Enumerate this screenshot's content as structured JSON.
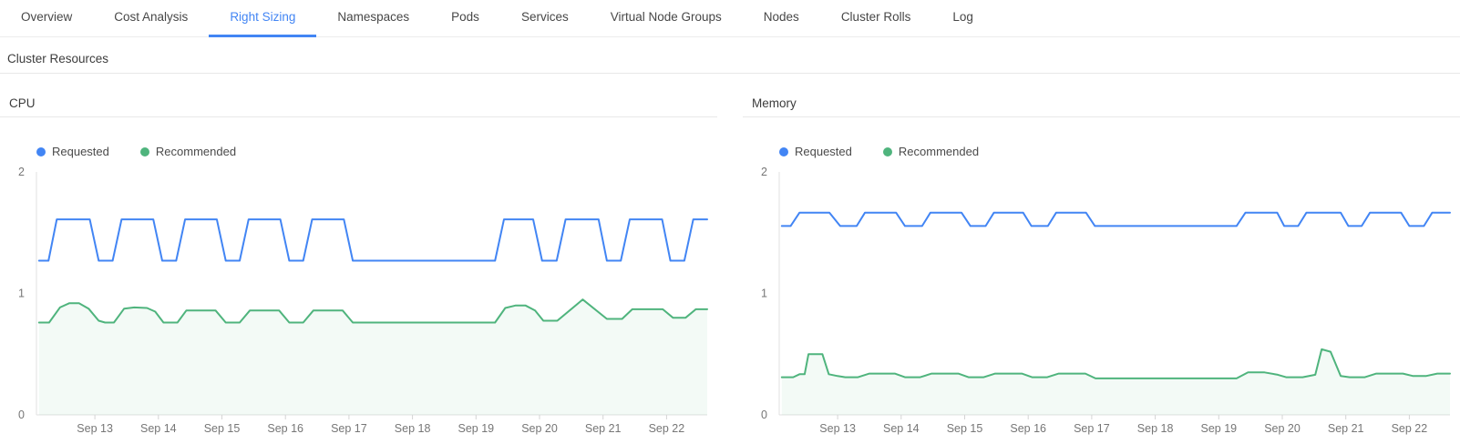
{
  "tabs": {
    "items": [
      {
        "label": "Overview",
        "active": false
      },
      {
        "label": "Cost Analysis",
        "active": false
      },
      {
        "label": "Right Sizing",
        "active": true
      },
      {
        "label": "Namespaces",
        "active": false
      },
      {
        "label": "Pods",
        "active": false
      },
      {
        "label": "Services",
        "active": false
      },
      {
        "label": "Virtual Node Groups",
        "active": false
      },
      {
        "label": "Nodes",
        "active": false
      },
      {
        "label": "Cluster Rolls",
        "active": false
      },
      {
        "label": "Log",
        "active": false
      }
    ]
  },
  "section": {
    "title": "Cluster Resources"
  },
  "colors": {
    "requested": "#4285f4",
    "recommended": "#4fb47d",
    "accent": "#4285f4",
    "axis": "#e0e0e0",
    "tick": "#d4d4d4",
    "fill_opacity": 0.07
  },
  "chart_data": [
    {
      "type": "line",
      "title": "CPU",
      "legend_position": "top-left",
      "grid": false,
      "xlim": [
        -0.92,
        9.64
      ],
      "ylim": [
        0,
        2
      ],
      "yticks": [
        0,
        1,
        2
      ],
      "xticks": [
        {
          "x": 0,
          "label": "Sep 13"
        },
        {
          "x": 1,
          "label": "Sep 14"
        },
        {
          "x": 2,
          "label": "Sep 15"
        },
        {
          "x": 3,
          "label": "Sep 16"
        },
        {
          "x": 4,
          "label": "Sep 17"
        },
        {
          "x": 5,
          "label": "Sep 18"
        },
        {
          "x": 6,
          "label": "Sep 19"
        },
        {
          "x": 7,
          "label": "Sep 20"
        },
        {
          "x": 8,
          "label": "Sep 21"
        },
        {
          "x": 9,
          "label": "Sep 22"
        }
      ],
      "series": [
        {
          "name": "Requested",
          "color_key": "requested",
          "fill": false,
          "points": [
            [
              -0.88,
              1.27
            ],
            [
              -0.73,
              1.27
            ],
            [
              -0.6,
              1.61
            ],
            [
              -0.08,
              1.61
            ],
            [
              0.06,
              1.27
            ],
            [
              0.28,
              1.27
            ],
            [
              0.42,
              1.61
            ],
            [
              0.92,
              1.61
            ],
            [
              1.06,
              1.27
            ],
            [
              1.28,
              1.27
            ],
            [
              1.42,
              1.61
            ],
            [
              1.92,
              1.61
            ],
            [
              2.06,
              1.27
            ],
            [
              2.28,
              1.27
            ],
            [
              2.42,
              1.61
            ],
            [
              2.92,
              1.61
            ],
            [
              3.06,
              1.27
            ],
            [
              3.28,
              1.27
            ],
            [
              3.42,
              1.61
            ],
            [
              3.92,
              1.61
            ],
            [
              4.06,
              1.27
            ],
            [
              6.3,
              1.27
            ],
            [
              6.44,
              1.61
            ],
            [
              6.9,
              1.61
            ],
            [
              7.04,
              1.27
            ],
            [
              7.27,
              1.27
            ],
            [
              7.41,
              1.61
            ],
            [
              7.93,
              1.61
            ],
            [
              8.06,
              1.27
            ],
            [
              8.28,
              1.27
            ],
            [
              8.42,
              1.61
            ],
            [
              8.93,
              1.61
            ],
            [
              9.06,
              1.27
            ],
            [
              9.28,
              1.27
            ],
            [
              9.42,
              1.61
            ],
            [
              9.64,
              1.61
            ]
          ]
        },
        {
          "name": "Recommended",
          "color_key": "recommended",
          "fill": true,
          "points": [
            [
              -0.88,
              0.76
            ],
            [
              -0.72,
              0.76
            ],
            [
              -0.55,
              0.885
            ],
            [
              -0.4,
              0.92
            ],
            [
              -0.25,
              0.92
            ],
            [
              -0.1,
              0.875
            ],
            [
              0.06,
              0.775
            ],
            [
              0.16,
              0.76
            ],
            [
              0.3,
              0.76
            ],
            [
              0.46,
              0.875
            ],
            [
              0.62,
              0.885
            ],
            [
              0.82,
              0.88
            ],
            [
              0.95,
              0.85
            ],
            [
              1.08,
              0.76
            ],
            [
              1.3,
              0.76
            ],
            [
              1.44,
              0.86
            ],
            [
              1.9,
              0.86
            ],
            [
              2.06,
              0.76
            ],
            [
              2.28,
              0.76
            ],
            [
              2.44,
              0.86
            ],
            [
              2.9,
              0.86
            ],
            [
              3.06,
              0.76
            ],
            [
              3.28,
              0.76
            ],
            [
              3.44,
              0.86
            ],
            [
              3.9,
              0.86
            ],
            [
              4.06,
              0.76
            ],
            [
              6.3,
              0.76
            ],
            [
              6.46,
              0.88
            ],
            [
              6.62,
              0.9
            ],
            [
              6.78,
              0.9
            ],
            [
              6.93,
              0.86
            ],
            [
              7.06,
              0.775
            ],
            [
              7.28,
              0.775
            ],
            [
              7.68,
              0.95
            ],
            [
              8.06,
              0.79
            ],
            [
              8.3,
              0.79
            ],
            [
              8.46,
              0.87
            ],
            [
              8.94,
              0.87
            ],
            [
              9.1,
              0.8
            ],
            [
              9.3,
              0.8
            ],
            [
              9.46,
              0.87
            ],
            [
              9.64,
              0.87
            ]
          ]
        }
      ]
    },
    {
      "type": "line",
      "title": "Memory",
      "legend_position": "top-left",
      "grid": false,
      "xlim": [
        -0.92,
        9.64
      ],
      "ylim": [
        0,
        2
      ],
      "yticks": [
        0,
        1,
        2
      ],
      "xticks": [
        {
          "x": 0,
          "label": "Sep 13"
        },
        {
          "x": 1,
          "label": "Sep 14"
        },
        {
          "x": 2,
          "label": "Sep 15"
        },
        {
          "x": 3,
          "label": "Sep 16"
        },
        {
          "x": 4,
          "label": "Sep 17"
        },
        {
          "x": 5,
          "label": "Sep 18"
        },
        {
          "x": 6,
          "label": "Sep 19"
        },
        {
          "x": 7,
          "label": "Sep 20"
        },
        {
          "x": 8,
          "label": "Sep 21"
        },
        {
          "x": 9,
          "label": "Sep 22"
        }
      ],
      "series": [
        {
          "name": "Requested",
          "color_key": "requested",
          "fill": false,
          "points": [
            [
              -0.88,
              1.555
            ],
            [
              -0.74,
              1.555
            ],
            [
              -0.6,
              1.665
            ],
            [
              -0.13,
              1.665
            ],
            [
              0.04,
              1.555
            ],
            [
              0.3,
              1.555
            ],
            [
              0.43,
              1.665
            ],
            [
              0.92,
              1.665
            ],
            [
              1.06,
              1.555
            ],
            [
              1.33,
              1.555
            ],
            [
              1.46,
              1.665
            ],
            [
              1.95,
              1.665
            ],
            [
              2.09,
              1.555
            ],
            [
              2.33,
              1.555
            ],
            [
              2.46,
              1.665
            ],
            [
              2.92,
              1.665
            ],
            [
              3.05,
              1.555
            ],
            [
              3.31,
              1.555
            ],
            [
              3.44,
              1.665
            ],
            [
              3.91,
              1.665
            ],
            [
              4.05,
              1.555
            ],
            [
              6.28,
              1.555
            ],
            [
              6.42,
              1.665
            ],
            [
              6.92,
              1.665
            ],
            [
              7.03,
              1.555
            ],
            [
              7.25,
              1.555
            ],
            [
              7.38,
              1.665
            ],
            [
              7.92,
              1.665
            ],
            [
              8.04,
              1.555
            ],
            [
              8.25,
              1.555
            ],
            [
              8.38,
              1.665
            ],
            [
              8.87,
              1.665
            ],
            [
              9.0,
              1.555
            ],
            [
              9.23,
              1.555
            ],
            [
              9.36,
              1.665
            ],
            [
              9.64,
              1.665
            ]
          ]
        },
        {
          "name": "Recommended",
          "color_key": "recommended",
          "fill": true,
          "points": [
            [
              -0.88,
              0.31
            ],
            [
              -0.7,
              0.31
            ],
            [
              -0.6,
              0.335
            ],
            [
              -0.52,
              0.335
            ],
            [
              -0.46,
              0.5
            ],
            [
              -0.24,
              0.5
            ],
            [
              -0.14,
              0.335
            ],
            [
              0.0,
              0.32
            ],
            [
              0.12,
              0.31
            ],
            [
              0.32,
              0.31
            ],
            [
              0.5,
              0.34
            ],
            [
              0.9,
              0.34
            ],
            [
              1.06,
              0.31
            ],
            [
              1.3,
              0.31
            ],
            [
              1.48,
              0.34
            ],
            [
              1.9,
              0.34
            ],
            [
              2.06,
              0.31
            ],
            [
              2.3,
              0.31
            ],
            [
              2.48,
              0.34
            ],
            [
              2.9,
              0.34
            ],
            [
              3.06,
              0.31
            ],
            [
              3.3,
              0.31
            ],
            [
              3.48,
              0.34
            ],
            [
              3.9,
              0.34
            ],
            [
              4.06,
              0.3
            ],
            [
              6.28,
              0.3
            ],
            [
              6.46,
              0.35
            ],
            [
              6.72,
              0.35
            ],
            [
              6.93,
              0.33
            ],
            [
              7.06,
              0.31
            ],
            [
              7.32,
              0.31
            ],
            [
              7.52,
              0.33
            ],
            [
              7.62,
              0.54
            ],
            [
              7.76,
              0.52
            ],
            [
              7.92,
              0.32
            ],
            [
              8.06,
              0.31
            ],
            [
              8.3,
              0.31
            ],
            [
              8.48,
              0.34
            ],
            [
              8.9,
              0.34
            ],
            [
              9.06,
              0.32
            ],
            [
              9.26,
              0.32
            ],
            [
              9.44,
              0.34
            ],
            [
              9.64,
              0.34
            ]
          ]
        }
      ]
    }
  ]
}
